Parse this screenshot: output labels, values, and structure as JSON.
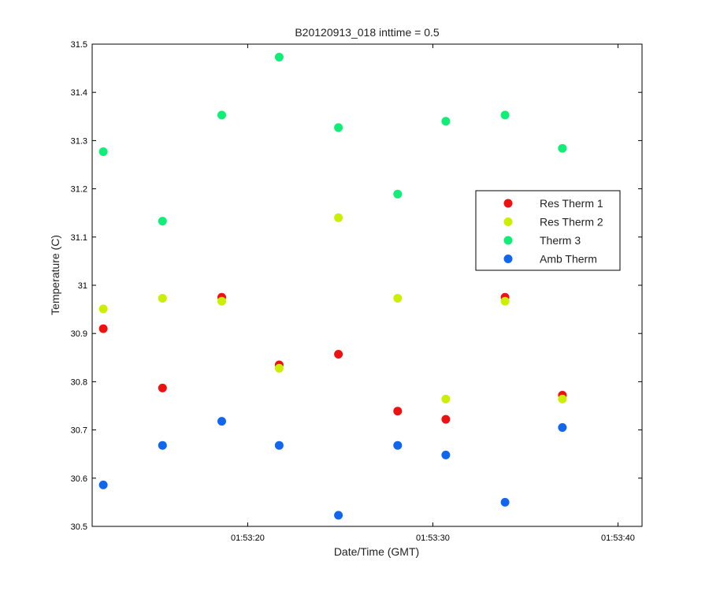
{
  "chart_data": {
    "type": "scatter",
    "title": "B20120913_018 inttime = 0.5",
    "xlabel": "Date/Time (GMT)",
    "ylabel": "Temperature (C)",
    "x_unit": "time (hh:mm:ss, GMT)",
    "xlim": [
      "01:53:11.6",
      "01:53:41.3"
    ],
    "ylim": [
      30.5,
      31.5
    ],
    "x_ticks": [
      "01:53:20",
      "01:53:30",
      "01:53:40"
    ],
    "y_ticks": [
      "30.5",
      "30.6",
      "30.7",
      "30.8",
      "30.9",
      "31",
      "31.1",
      "31.2",
      "31.3",
      "31.4",
      "31.5"
    ],
    "grid": false,
    "legend_position": "right",
    "x": [
      "01:53:12.2",
      "01:53:15.4",
      "01:53:18.6",
      "01:53:21.7",
      "01:53:24.9",
      "01:53:28.1",
      "01:53:30.7",
      "01:53:33.9",
      "01:53:37.0"
    ],
    "series": [
      {
        "name": "Res Therm 1",
        "color": "#ee1111",
        "x": [
          "01:53:12.2",
          "01:53:15.4",
          "01:53:18.6",
          "01:53:21.7",
          "01:53:24.9",
          "01:53:28.1",
          "01:53:30.7",
          "01:53:33.9",
          "01:53:37.0"
        ],
        "values": [
          30.91,
          30.787,
          30.975,
          30.835,
          30.857,
          30.739,
          30.722,
          30.975,
          30.772
        ]
      },
      {
        "name": "Res Therm 2",
        "color": "#ccee00",
        "x": [
          "01:53:12.2",
          "01:53:15.4",
          "01:53:18.6",
          "01:53:21.7",
          "01:53:24.9",
          "01:53:28.1",
          "01:53:30.7",
          "01:53:33.9",
          "01:53:37.0"
        ],
        "values": [
          30.951,
          30.973,
          30.967,
          30.828,
          31.14,
          30.973,
          30.764,
          30.967,
          30.764
        ]
      },
      {
        "name": "Therm 3",
        "color": "#11ee77",
        "x": [
          "01:53:12.2",
          "01:53:15.4",
          "01:53:18.6",
          "01:53:21.7",
          "01:53:24.9",
          "01:53:28.1",
          "01:53:30.7",
          "01:53:33.9",
          "01:53:37.0"
        ],
        "values": [
          31.277,
          31.133,
          31.353,
          31.473,
          31.327,
          31.189,
          31.34,
          31.353,
          31.284
        ]
      },
      {
        "name": "Amb Therm",
        "color": "#1166ee",
        "x": [
          "01:53:12.2",
          "01:53:15.4",
          "01:53:18.6",
          "01:53:21.7",
          "01:53:24.9",
          "01:53:28.1",
          "01:53:30.7",
          "01:53:33.9",
          "01:53:37.0"
        ],
        "values": [
          30.586,
          30.668,
          30.718,
          30.668,
          30.523,
          30.668,
          30.648,
          30.55,
          30.705
        ]
      }
    ]
  }
}
